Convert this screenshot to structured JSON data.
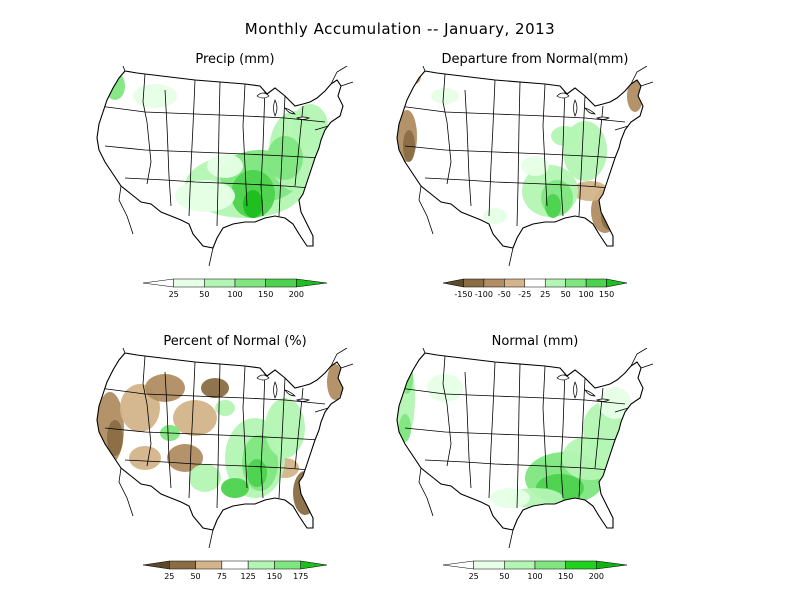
{
  "title": "Monthly Accumulation -- January, 2013",
  "colors": {
    "state_line": "#000000",
    "green1": "#e6ffe6",
    "green2": "#b3f5b3",
    "green3": "#80e680",
    "green4": "#4dd24d",
    "green5": "#1ebe1e",
    "brown1": "#5a4a2a",
    "brown2": "#8a6d43",
    "brown3": "#b08d62",
    "brown4": "#d4b48a"
  },
  "panels": [
    {
      "id": "precip",
      "title": "Precip (mm)",
      "scheme": "precip",
      "colorbar": {
        "colors": [
          "#ffffff",
          "#e6ffe6",
          "#b3f5b3",
          "#80e680",
          "#4dd24d",
          "#1ebe1e"
        ],
        "labels": [
          "25",
          "50",
          "100",
          "150",
          "200"
        ]
      }
    },
    {
      "id": "departure",
      "title": "Departure from Normal(mm)",
      "scheme": "departure",
      "colorbar": {
        "colors": [
          "#5a4a2a",
          "#8a6d43",
          "#b08d62",
          "#d4b48a",
          "#ffffff",
          "#b3f5b3",
          "#80e680",
          "#4dd24d",
          "#1ebe1e"
        ],
        "labels": [
          "-150",
          "-100",
          "-50",
          "-25",
          "25",
          "50",
          "100",
          "150"
        ]
      }
    },
    {
      "id": "percent",
      "title": "Percent of Normal (%)",
      "scheme": "percent",
      "colorbar": {
        "colors": [
          "#5a4a2a",
          "#8a6d43",
          "#d4b48a",
          "#ffffff",
          "#b3f5b3",
          "#80e680",
          "#1ebe1e"
        ],
        "labels": [
          "25",
          "50",
          "75",
          "125",
          "150",
          "175"
        ]
      }
    },
    {
      "id": "normal",
      "title": "Normal (mm)",
      "scheme": "normal",
      "colorbar": {
        "colors": [
          "#ffffff",
          "#e6ffe6",
          "#b3f5b3",
          "#80e680",
          "#1ed21e",
          "#10b410"
        ],
        "labels": [
          "25",
          "50",
          "100",
          "150",
          "200"
        ]
      }
    }
  ]
}
